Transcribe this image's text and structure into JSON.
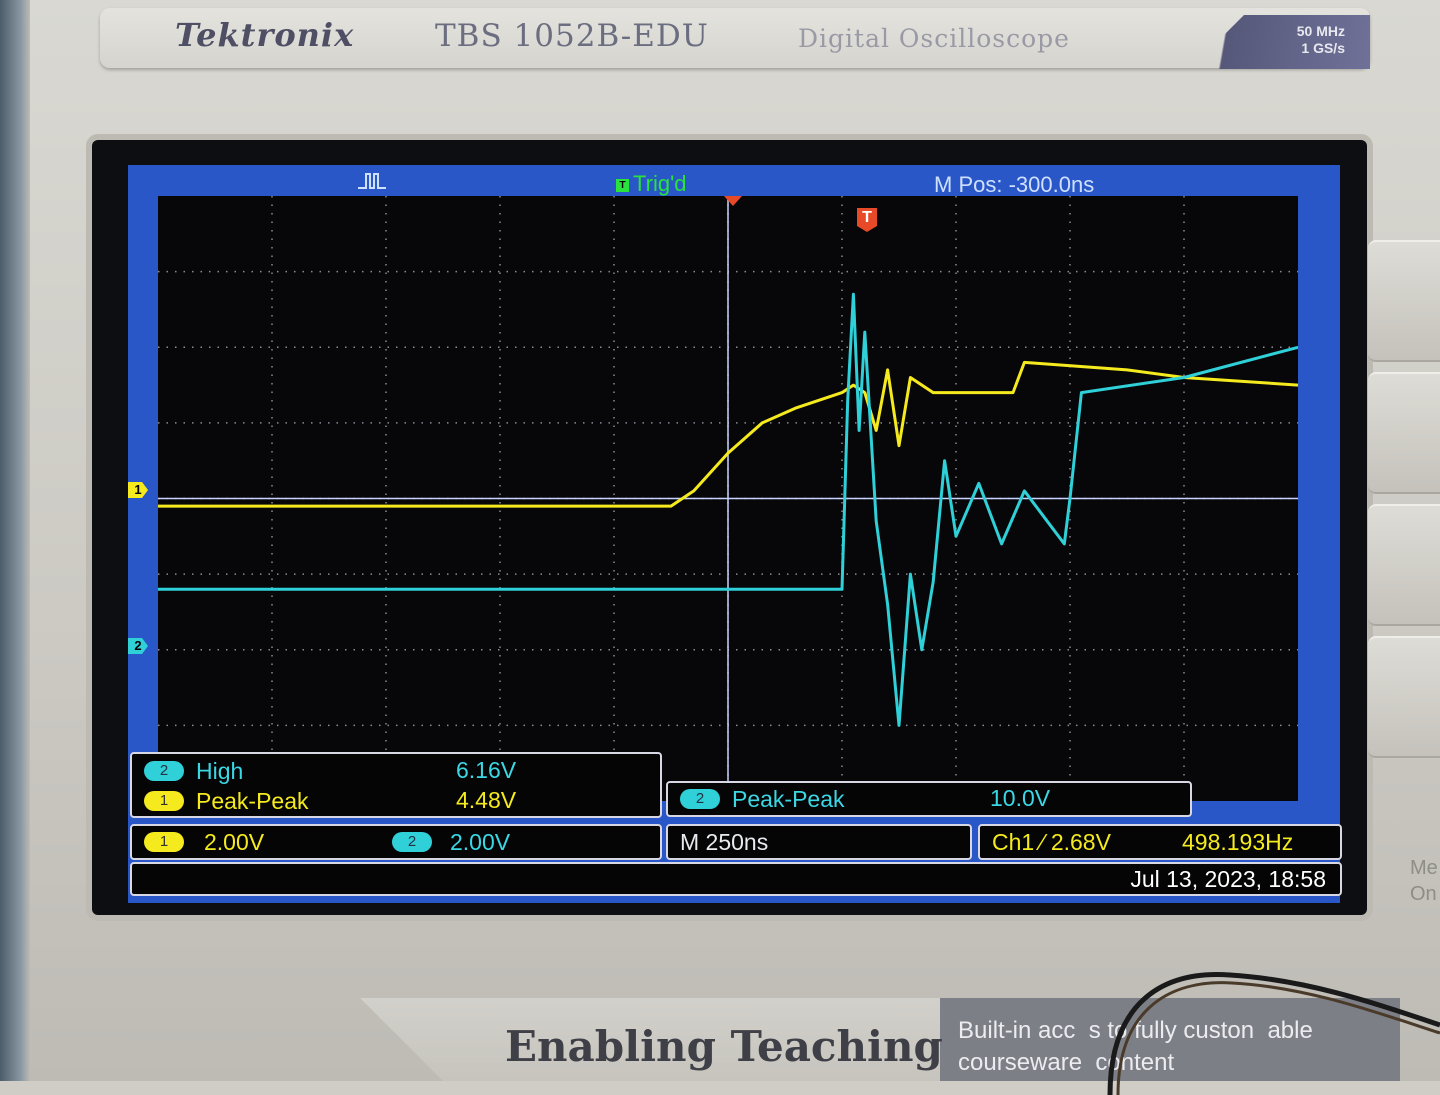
{
  "device": {
    "brand": "Tektronix",
    "model": "TBS 1052B-EDU",
    "subtitle": "Digital Oscilloscope",
    "bandwidth": "50 MHz",
    "sample_rate": "1 GS/s"
  },
  "screen_header": {
    "acq_icon": "pulse-acquire-icon",
    "trig_status": "Trig'd",
    "trig_badge": "T",
    "mpos": "M Pos: -300.0ns"
  },
  "markers": {
    "ch1": "1",
    "ch2": "2",
    "trigger": "T"
  },
  "measurements_left": [
    {
      "channel": "2",
      "label": "High",
      "value": "6.16V"
    },
    {
      "channel": "1",
      "label": "Peak-Peak",
      "value": "4.48V"
    }
  ],
  "measurement_right": {
    "channel": "2",
    "label": "Peak-Peak",
    "value": "10.0V"
  },
  "status": {
    "ch1_badge": "1",
    "ch1_scale": "2.00V",
    "ch2_badge": "2",
    "ch2_scale": "2.00V",
    "timebase": "M 250ns",
    "trigger": "Ch1 ⁄ 2.68V",
    "frequency": "498.193Hz",
    "datetime": "Jul 13, 2023, 18:58"
  },
  "footer": {
    "slogan": "Enabling Teaching",
    "blurb_line1": "Built-in acc  s to fully custon  able",
    "blurb_line2": "courseware  content"
  },
  "side_text": "Me\nOn",
  "colors": {
    "ch1": "#f5ea1e",
    "ch2": "#2fd0d8",
    "screen_border": "#2a57c8",
    "trigger_marker": "#e84a28",
    "trig_status": "#29e23b"
  },
  "chart_data": {
    "type": "line",
    "x_unit": "divisions",
    "y_unit": "divisions",
    "xlim": [
      0,
      10
    ],
    "ylim": [
      -4,
      4
    ],
    "grid": true,
    "series": [
      {
        "name": "1",
        "color": "#f5ea1e",
        "x": [
          0,
          2.5,
          4.5,
          4.7,
          5.0,
          5.3,
          5.6,
          6.0,
          6.1,
          6.2,
          6.3,
          6.4,
          6.5,
          6.6,
          6.8,
          7.5,
          7.6,
          8.5,
          9.0,
          10
        ],
        "y": [
          -0.1,
          -0.1,
          -0.1,
          0.1,
          0.6,
          1.0,
          1.2,
          1.4,
          1.5,
          1.4,
          0.9,
          1.7,
          0.7,
          1.6,
          1.4,
          1.4,
          1.8,
          1.7,
          1.6,
          1.5
        ]
      },
      {
        "name": "2",
        "color": "#2fd0d8",
        "x": [
          0,
          4.0,
          6.0,
          6.05,
          6.1,
          6.15,
          6.2,
          6.3,
          6.4,
          6.5,
          6.6,
          6.7,
          6.8,
          6.9,
          7.0,
          7.2,
          7.4,
          7.6,
          7.8,
          7.95,
          8.0,
          8.1,
          9.0,
          10
        ],
        "y": [
          -1.2,
          -1.2,
          -1.2,
          1.3,
          2.7,
          0.9,
          2.2,
          -0.3,
          -1.4,
          -3.0,
          -1.0,
          -2.0,
          -1.1,
          0.5,
          -0.5,
          0.2,
          -0.6,
          0.1,
          -0.3,
          -0.6,
          0.0,
          1.4,
          1.6,
          2.0
        ]
      }
    ]
  }
}
